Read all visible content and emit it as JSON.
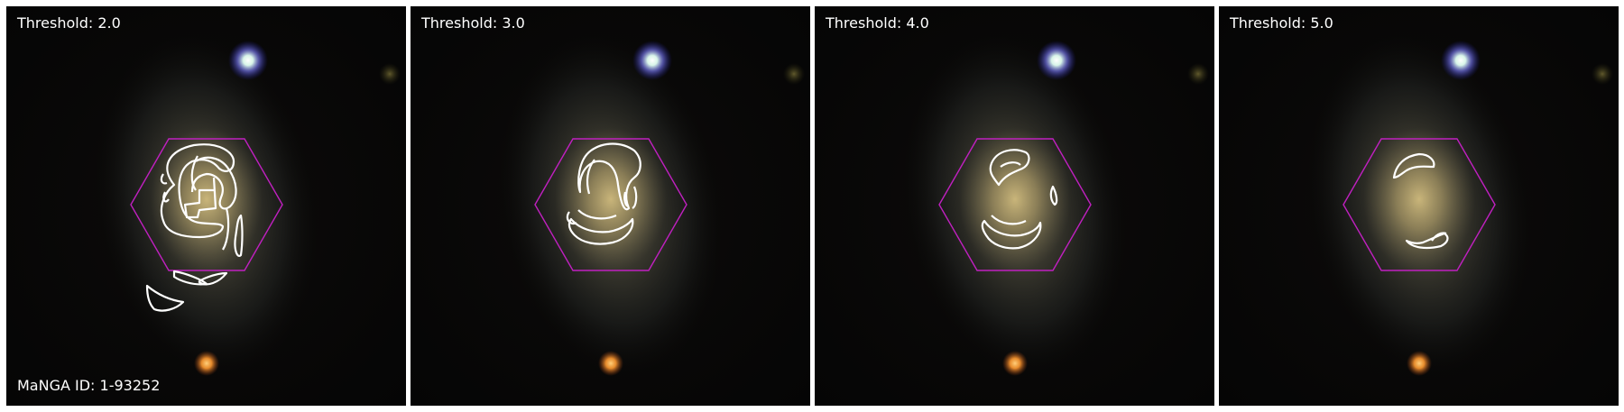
{
  "figure": {
    "manga_id_label": "MaNGA ID: 1-93252",
    "panels": [
      {
        "threshold_label": "Threshold: 2.0"
      },
      {
        "threshold_label": "Threshold: 3.0"
      },
      {
        "threshold_label": "Threshold: 4.0"
      },
      {
        "threshold_label": "Threshold: 5.0"
      }
    ]
  },
  "colors": {
    "background": "#000000",
    "galaxy_core": "#b8a26a",
    "hexagon": "#c020c0",
    "contours": "#ffffff",
    "star_blue": "#8080ff",
    "star_orange": "#ff9a30"
  },
  "icons": {
    "hexagon": "ifu-hexagon-outline",
    "contours": "spiral-arm-contours"
  }
}
